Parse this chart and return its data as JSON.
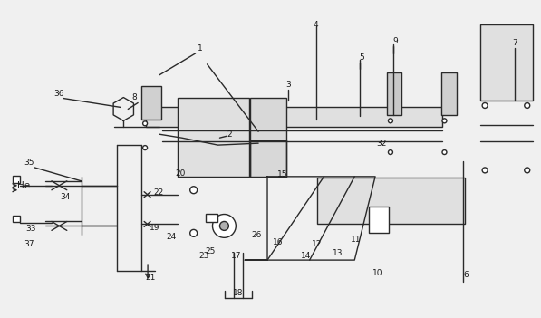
{
  "bg_color": "#f0f0f0",
  "line_color": "#2a2a2a",
  "lw": 1.0,
  "figsize": [
    5.97,
    3.51
  ],
  "dpi": 100
}
